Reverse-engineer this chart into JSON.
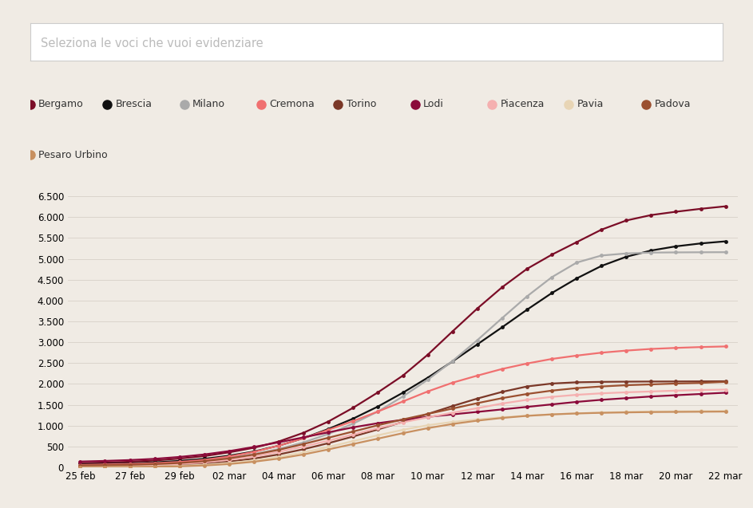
{
  "background_color": "#f0ebe4",
  "search_box_text": "Seleziona le voci che vuoi evidenziare",
  "series": {
    "Bergamo": {
      "color": "#7b0d27"
    },
    "Brescia": {
      "color": "#111111"
    },
    "Milano": {
      "color": "#aaaaaa"
    },
    "Cremona": {
      "color": "#f07070"
    },
    "Torino": {
      "color": "#7b3828"
    },
    "Lodi": {
      "color": "#8b0a3a"
    },
    "Piacenza": {
      "color": "#f5b0b0"
    },
    "Pavia": {
      "color": "#e8d5b5"
    },
    "Padova": {
      "color": "#9b5030"
    },
    "Pesaro Urbino": {
      "color": "#c89060"
    }
  },
  "x_labels": [
    "25 feb",
    "27 feb",
    "29 feb",
    "02 mar",
    "04 mar",
    "06 mar",
    "08 mar",
    "10 mar",
    "12 mar",
    "14 mar",
    "16 mar",
    "18 mar",
    "20 mar",
    "22 mar"
  ],
  "ylim": [
    0,
    6700
  ],
  "yticks": [
    0,
    500,
    1000,
    1500,
    2000,
    2500,
    3000,
    3500,
    4000,
    4500,
    5000,
    5500,
    6000,
    6500
  ]
}
